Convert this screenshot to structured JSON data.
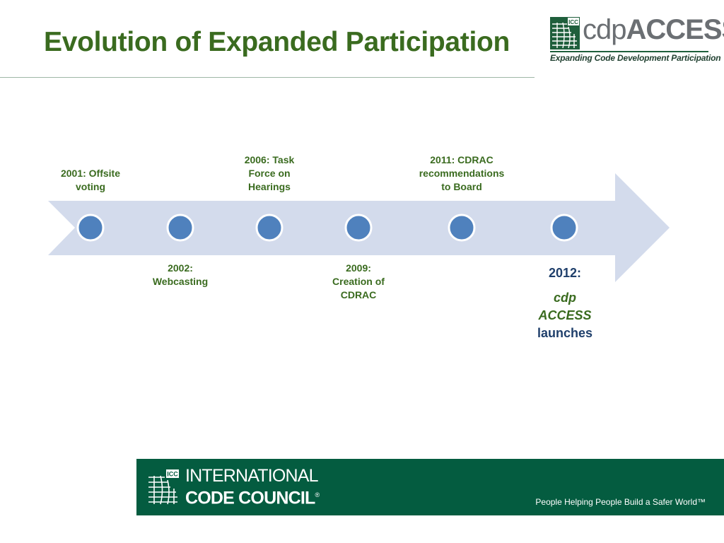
{
  "slide": {
    "title": "Evolution of Expanded Participation"
  },
  "header_logo": {
    "mark_text": "ICC",
    "word_cdp": "cdp",
    "word_access": "ACCESS",
    "tagline": "Expanding Code Development Participation"
  },
  "timeline": {
    "arrow_color": "#d3dbec",
    "dot_color": "#4f81bd",
    "dot_stroke": "#ffffff",
    "label_color": "#3a6b1f",
    "events": [
      {
        "lines": [
          "2001: Offsite",
          "voting"
        ]
      },
      {
        "lines": [
          "2002:",
          "Webcasting"
        ]
      },
      {
        "lines": [
          "2006: Task",
          "Force on",
          "Hearings"
        ]
      },
      {
        "lines": [
          "2009:",
          "Creation of",
          "CDRAC"
        ]
      },
      {
        "lines": [
          "2011: CDRAC",
          "recommendations",
          "to Board"
        ]
      },
      {
        "year": "2012:",
        "name_1": "cdp",
        "name_2": "ACCESS",
        "verb": "launches"
      }
    ]
  },
  "footer": {
    "background": "#045c40",
    "mark_text": "ICC",
    "org_line1": "INTERNATIONAL",
    "org_line2": "CODE COUNCIL",
    "registered": "®",
    "tagline": "People Helping People Build a Safer World™"
  }
}
